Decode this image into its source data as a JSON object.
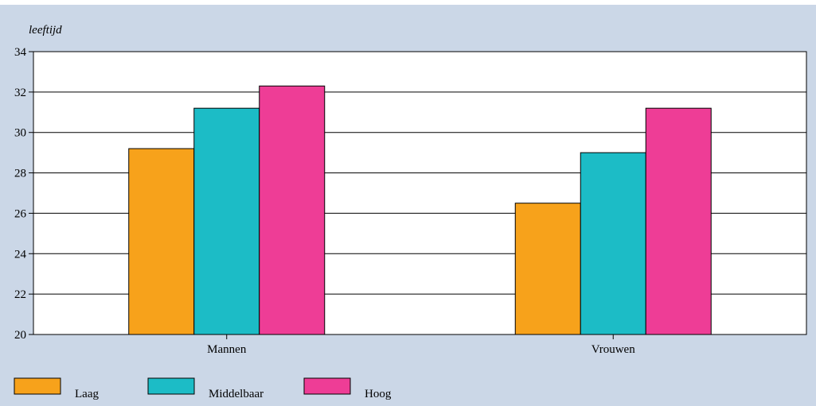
{
  "chart_data": {
    "type": "bar",
    "title": "",
    "ylabel": "leeftijd",
    "xlabel": "",
    "categories": [
      "Mannen",
      "Vrouwen"
    ],
    "series": [
      {
        "name": "Laag",
        "color": "#f7a21b",
        "values": [
          29.2,
          26.5
        ]
      },
      {
        "name": "Middelbaar",
        "color": "#1cbcc6",
        "values": [
          31.2,
          29.0
        ]
      },
      {
        "name": "Hoog",
        "color": "#ee3d96",
        "values": [
          32.3,
          31.2
        ]
      }
    ],
    "ylim": [
      20,
      34
    ],
    "yticks": [
      "20",
      "22",
      "24",
      "26",
      "28",
      "30",
      "32",
      "34"
    ],
    "grid": true,
    "legend_position": "bottom-left"
  }
}
